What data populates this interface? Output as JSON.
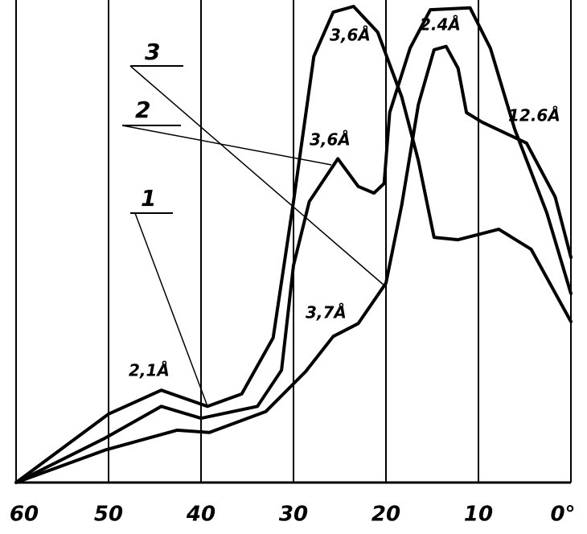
{
  "chart_data": {
    "type": "line",
    "xlim": [
      60,
      0
    ],
    "ylim": [
      0,
      100
    ],
    "xticks": [
      60,
      50,
      40,
      30,
      20,
      10,
      {
        "value": 0,
        "label": "0°"
      }
    ],
    "grid": true,
    "series": [
      {
        "name": "1",
        "color": "#000000",
        "x": [
          60,
          50,
          44.3,
          39.3,
          35.6,
          32.2,
          30,
          27.8,
          25.7,
          23.5,
          20.9,
          18.3,
          16.5,
          14.8,
          12.2,
          7.8,
          4.3,
          0
        ],
        "values": [
          0,
          14.4,
          19.4,
          16,
          18.6,
          30.4,
          59,
          89.5,
          98.8,
          100,
          94.6,
          81,
          67.6,
          51.5,
          51,
          53.2,
          49,
          33.8
        ]
      },
      {
        "name": "2",
        "color": "#000000",
        "x": [
          60,
          50.4,
          44.3,
          40,
          33.9,
          31.3,
          30,
          28.3,
          25.2,
          23,
          21.3,
          20.2,
          19.6,
          17.4,
          15.2,
          10.9,
          8.7,
          6.1,
          2.6,
          0
        ],
        "values": [
          0,
          9.3,
          16,
          13.5,
          16,
          23.6,
          45.6,
          59,
          68,
          62.2,
          60.8,
          62.8,
          77.7,
          91.2,
          99.3,
          99.7,
          91.2,
          74.3,
          56.6,
          39.7
        ]
      },
      {
        "name": "3",
        "color": "#000000",
        "x": [
          60,
          50.4,
          42.6,
          39.1,
          33,
          28.7,
          25.7,
          23,
          20,
          18.3,
          16.5,
          14.8,
          13.5,
          12.2,
          11.3,
          9.6,
          4.8,
          1.7,
          0
        ],
        "values": [
          0,
          6.8,
          11,
          10.5,
          14.9,
          23.3,
          30.7,
          33.4,
          41.9,
          58.3,
          79.4,
          90.9,
          91.6,
          87,
          77.7,
          75.7,
          71.3,
          60,
          47.3
        ]
      }
    ],
    "annotations": [
      "2,1Å",
      "3,6Å",
      "3,6Å",
      "2.4Å",
      "12.6Å",
      "3,7Å"
    ]
  }
}
